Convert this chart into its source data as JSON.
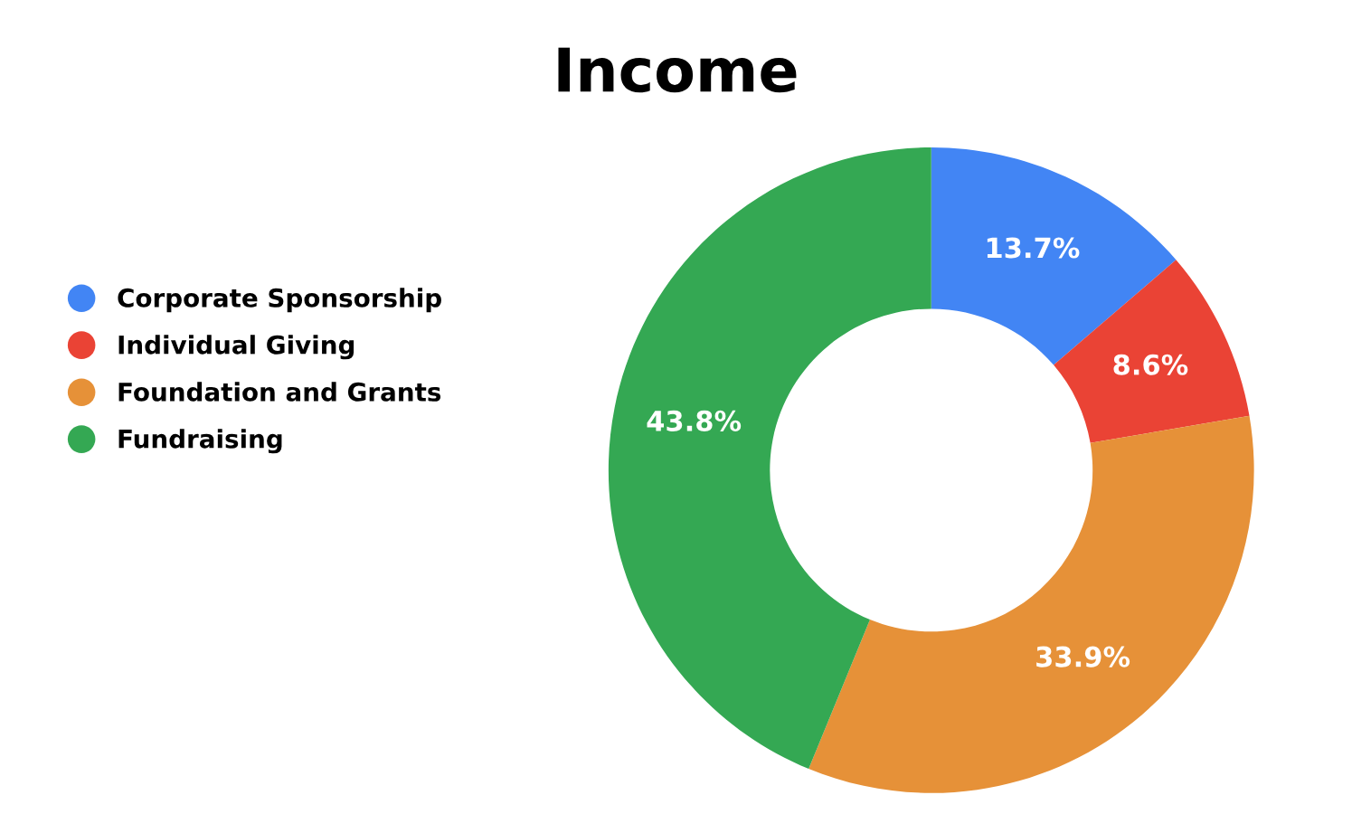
{
  "chart_data": {
    "type": "donut",
    "title": "Income",
    "categories": [
      "Corporate Sponsorship",
      "Individual Giving",
      "Foundation and Grants",
      "Fundraising"
    ],
    "values": [
      13.7,
      8.6,
      33.9,
      43.8
    ],
    "value_labels": [
      "13.7%",
      "8.6%",
      "33.9%",
      "43.8%"
    ],
    "colors": [
      "#4285f4",
      "#ea4335",
      "#e69138",
      "#34a853"
    ],
    "legend": "left"
  }
}
